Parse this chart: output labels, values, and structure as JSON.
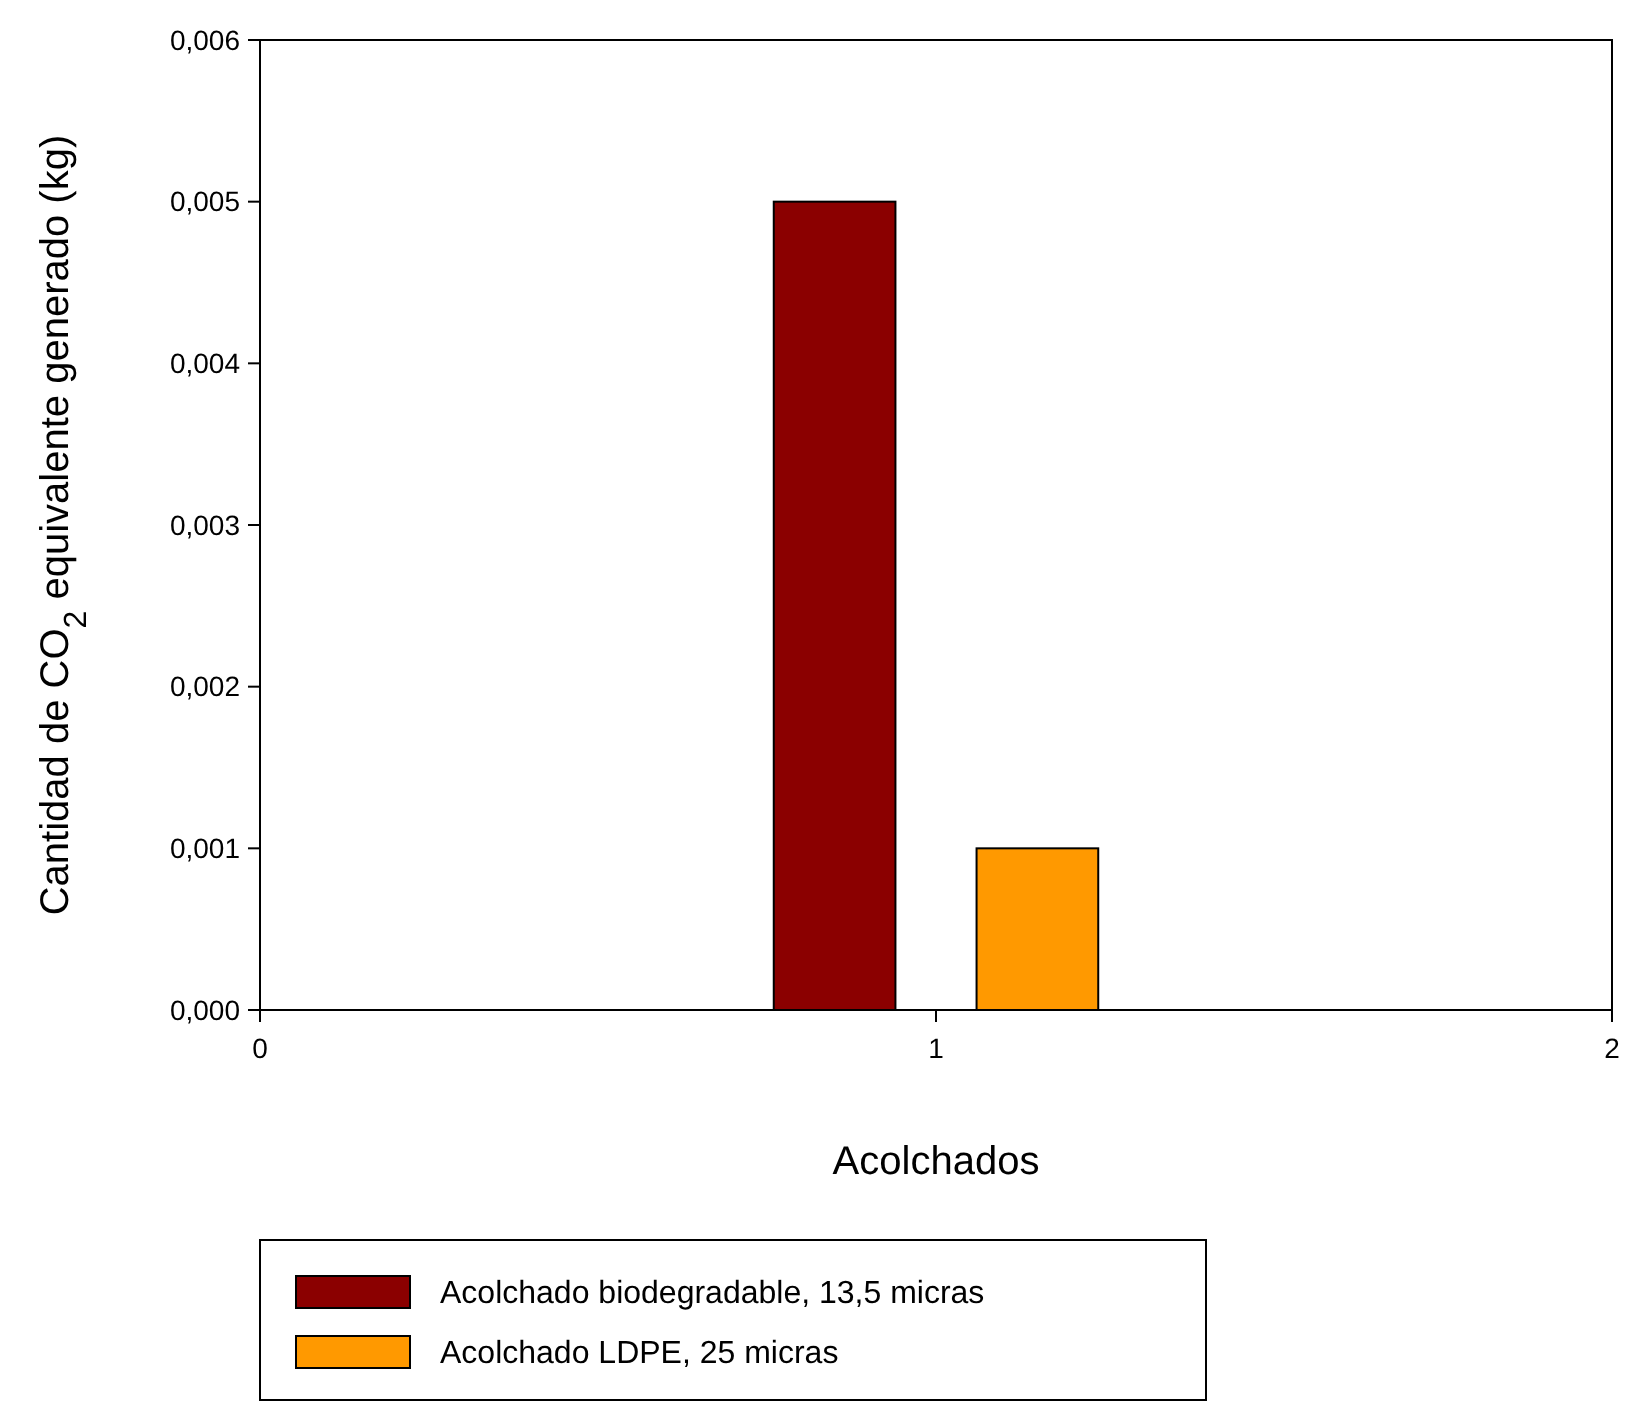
{
  "chart_data": {
    "type": "bar",
    "xlabel": "Acolchados",
    "ylabel": "Cantidad de CO$_{2}$ equivalente generado (kg)",
    "series": [
      {
        "name": "Acolchado biodegradable, 13,5 micras",
        "color": "#8b0000",
        "x": [
          0.85
        ],
        "values": [
          0.005
        ]
      },
      {
        "name": "Acolchado LDPE, 25 micras",
        "color": "#ff9900",
        "x": [
          1.15
        ],
        "values": [
          0.001
        ]
      }
    ],
    "xlim": [
      0,
      2
    ],
    "xticks": [
      0,
      1,
      2
    ],
    "ylim": [
      0,
      0.006
    ],
    "yticks": [
      {
        "value": 0,
        "label": "0,000"
      },
      {
        "value": 0.001,
        "label": "0,001"
      },
      {
        "value": 0.002,
        "label": "0,002"
      },
      {
        "value": 0.003,
        "label": "0,003"
      },
      {
        "value": 0.004,
        "label": "0,004"
      },
      {
        "value": 0.005,
        "label": "0,005"
      },
      {
        "value": 0.006,
        "label": "0,006"
      }
    ],
    "legend": "bottom"
  }
}
